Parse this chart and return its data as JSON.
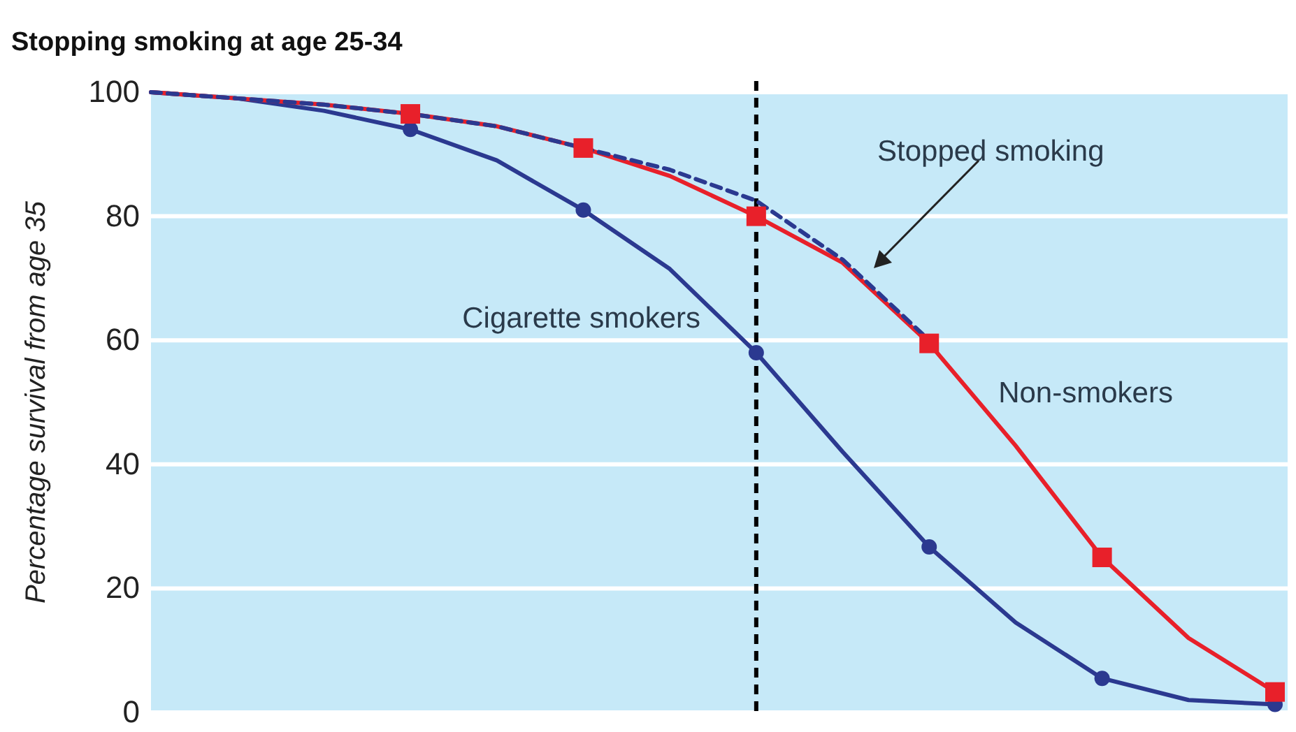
{
  "chart_data": {
    "type": "line",
    "title": "Stopping smoking at age 25-34",
    "ylabel": "Percentage survival from age 35",
    "categories": [
      null,
      null,
      null,
      null,
      null,
      null,
      null,
      null,
      null,
      null,
      null,
      null,
      null,
      null
    ],
    "ylim": [
      0,
      100
    ],
    "yticks": [
      0,
      20,
      40,
      60,
      80,
      100
    ],
    "grid": "y",
    "tick_labels": "y",
    "series": [
      {
        "name": "Cigarette smokers",
        "color": "#2b3990",
        "line_style": "solid",
        "marker": "none",
        "values": [
          100,
          99,
          97,
          94,
          89,
          81,
          71.5,
          58,
          42,
          26.7,
          14.5,
          5.5,
          2,
          1.3
        ]
      },
      {
        "name": "Non-smokers",
        "color": "#e8202a",
        "line_style": "solid",
        "marker": "none",
        "values": [
          100,
          99,
          98,
          96.5,
          94.5,
          91,
          86.5,
          80,
          72.5,
          59.5,
          43,
          25,
          12,
          3.3
        ]
      },
      {
        "name": "Stopped smoking",
        "color": "#2b3990",
        "line_style": "dashed",
        "marker": "none",
        "values": [
          100,
          99,
          98,
          96.5,
          94.5,
          91,
          87.5,
          82.5,
          73,
          60,
          null,
          null,
          null,
          null
        ]
      },
      {
        "color": "#2b3990",
        "type": "scatter",
        "marker": "circle",
        "values": [
          null,
          null,
          null,
          94,
          null,
          81,
          null,
          58,
          null,
          26.7,
          null,
          5.5,
          null,
          1.3
        ]
      },
      {
        "color": "#e8202a",
        "type": "scatter",
        "marker": "square",
        "values": [
          null,
          null,
          null,
          96.5,
          null,
          91,
          null,
          80,
          null,
          59.5,
          null,
          25,
          null,
          3.3
        ]
      }
    ]
  }
}
